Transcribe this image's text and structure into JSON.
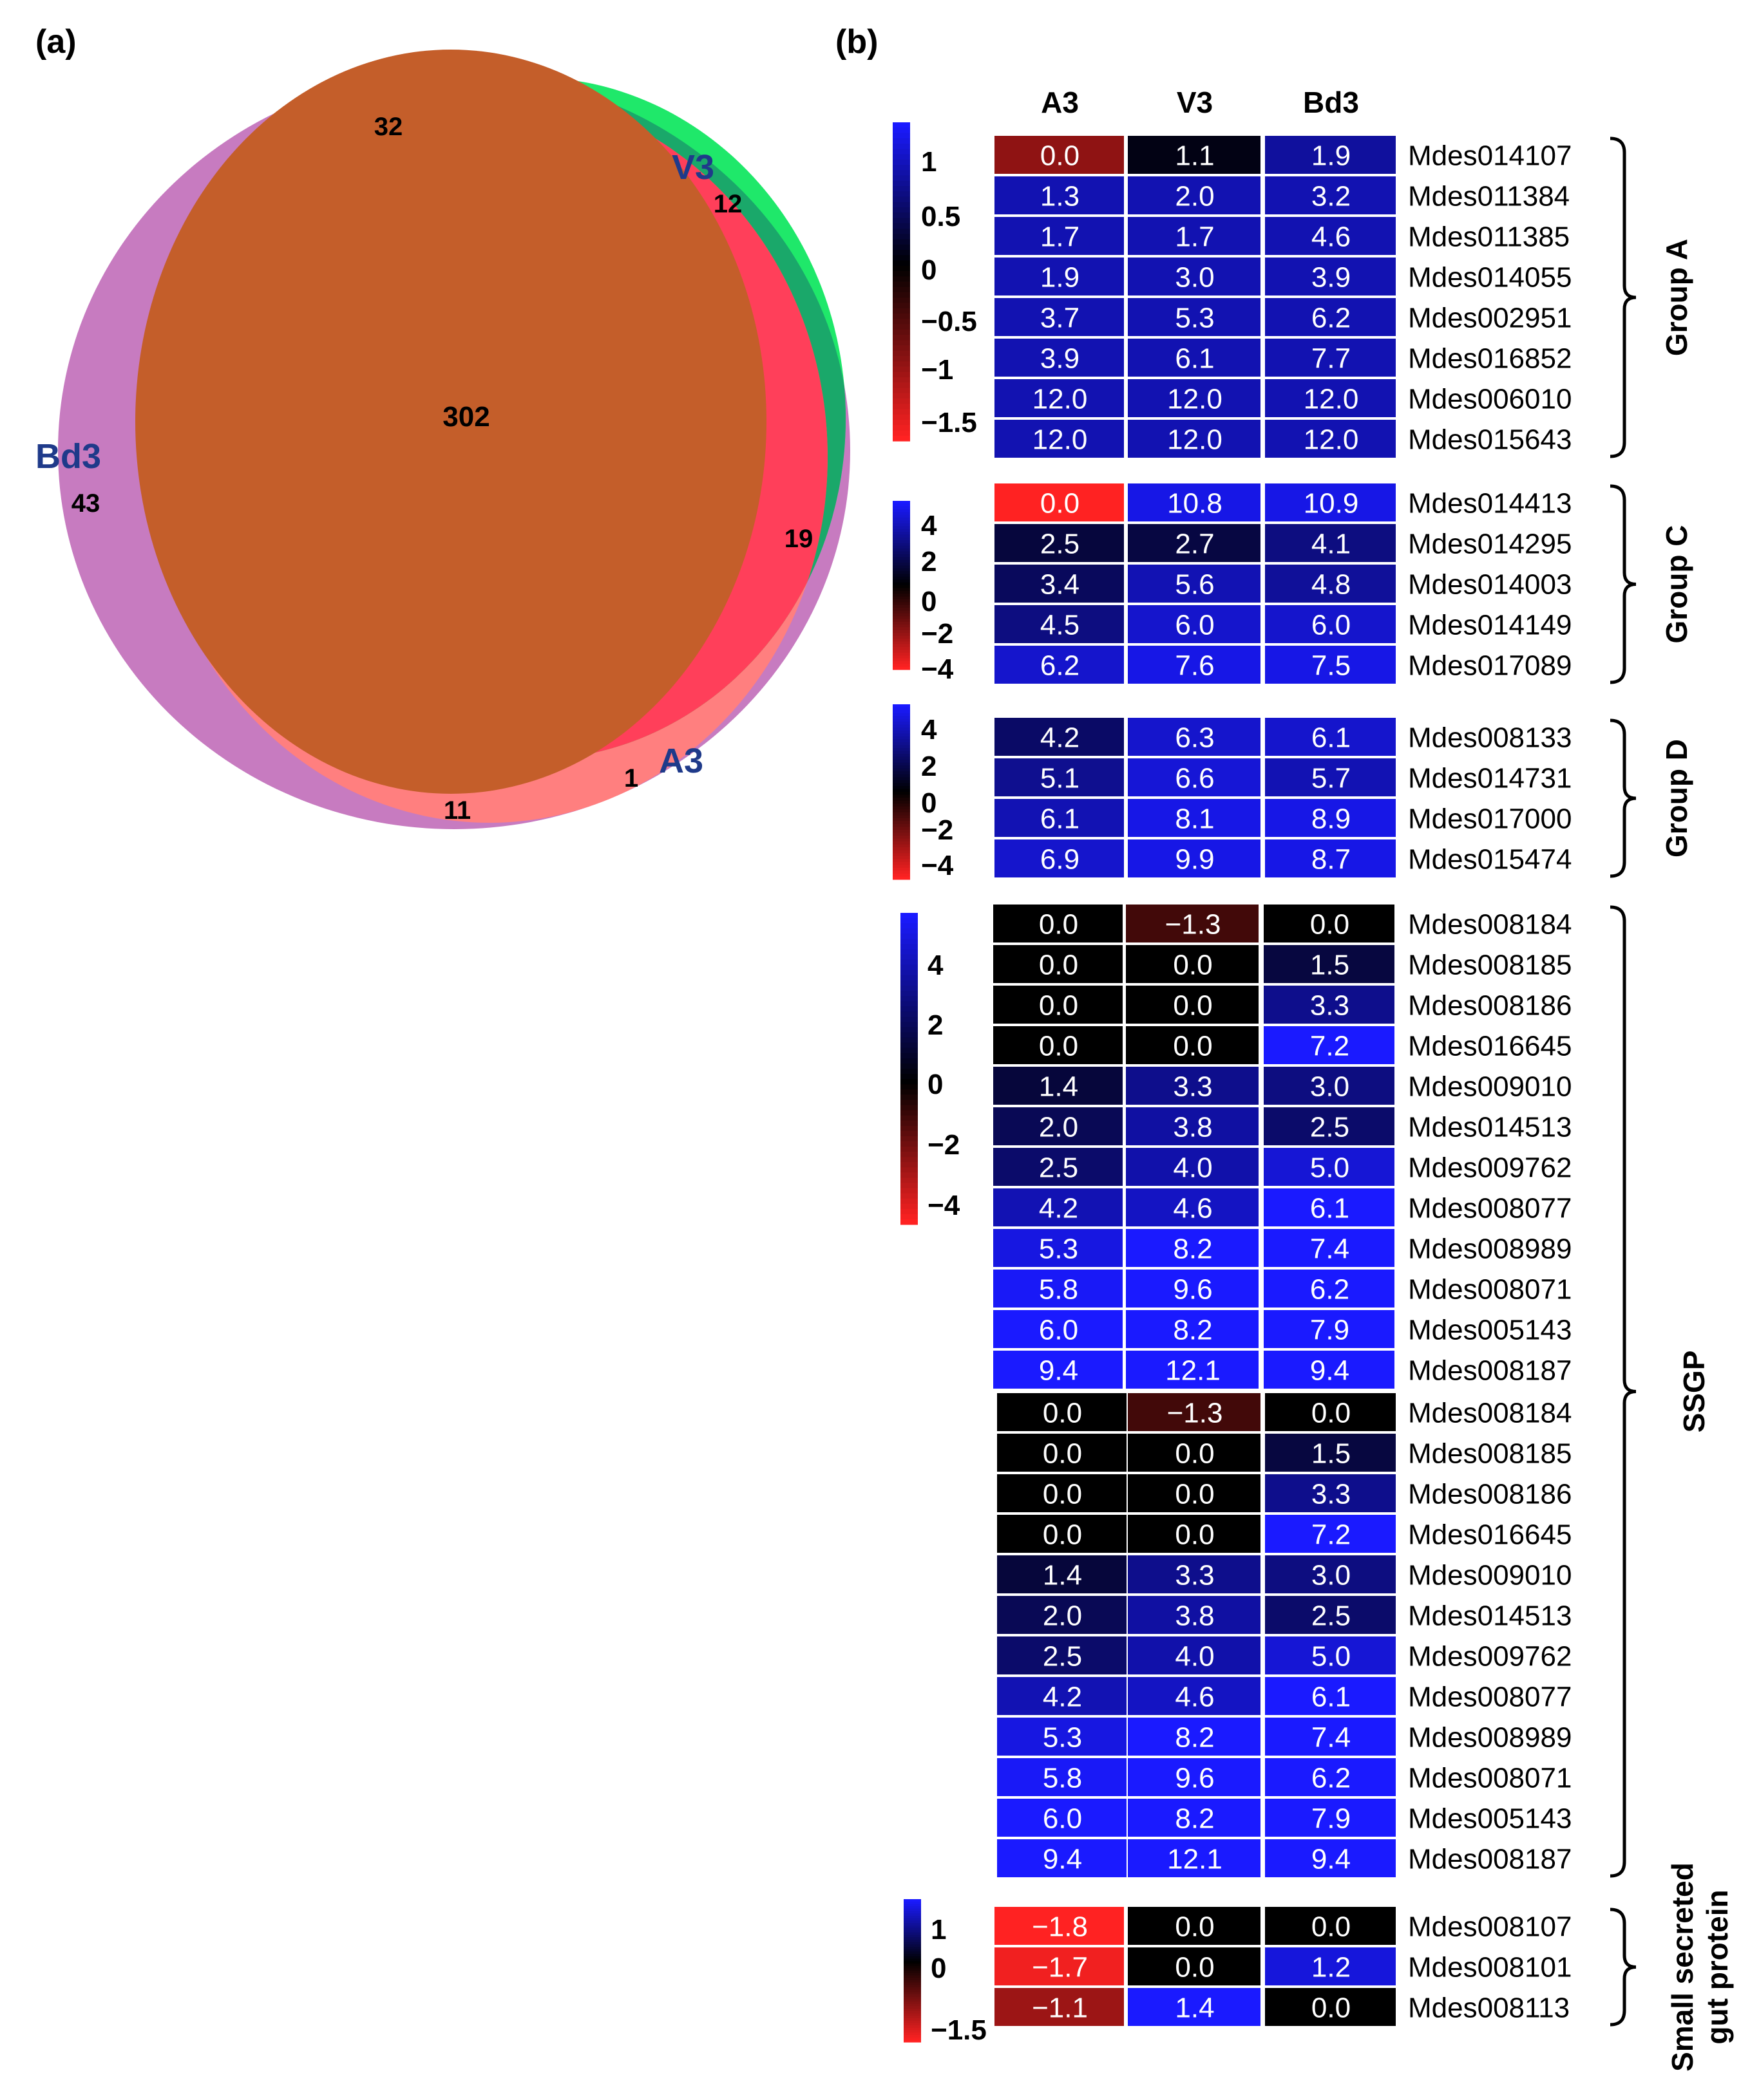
{
  "panels": {
    "a_label": "(a)",
    "b_label": "(b)"
  },
  "chart_data": [
    {
      "type": "venn",
      "panel": "(a)",
      "sets": [
        "Bd3",
        "V3",
        "A3"
      ],
      "regions": [
        {
          "sets": [
            "Bd3"
          ],
          "value": 43
        },
        {
          "sets": [
            "V3"
          ],
          "value": 12
        },
        {
          "sets": [
            "A3"
          ],
          "value": 1
        },
        {
          "sets": [
            "Bd3",
            "V3"
          ],
          "value": 32
        },
        {
          "sets": [
            "V3",
            "A3"
          ],
          "value": 19
        },
        {
          "sets": [
            "Bd3",
            "A3"
          ],
          "value": 11
        },
        {
          "sets": [
            "Bd3",
            "V3",
            "A3"
          ],
          "value": 302
        }
      ],
      "colors": {
        "Bd3": "#c77bc0",
        "V3": "#1fe86a",
        "A3": "#ff7f7f",
        "Bd3_V3": "#1aa86a",
        "center": "#c45e2a",
        "label_color": "#1f3a8a"
      }
    },
    {
      "type": "heatmap",
      "panel": "(b)",
      "columns": [
        "A3",
        "V3",
        "Bd3"
      ],
      "colors": {
        "high": "#1a1aff",
        "zero": "#000000",
        "low": "#ff2222",
        "cell_text": "#ffffff"
      },
      "groups": [
        {
          "name": "Group A",
          "scale_ticks": [
            "1",
            "0.5",
            "0",
            "−0.5",
            "−1",
            "−1.5"
          ],
          "scale_range": [
            -1.6,
            1.3
          ],
          "rows": [
            {
              "id": "Mdes014107",
              "values": [
                "0.0",
                "1.1",
                "1.9"
              ],
              "z": [
                -0.9,
                0.1,
                0.8
              ]
            },
            {
              "id": "Mdes011384",
              "values": [
                "1.3",
                "2.0",
                "3.2"
              ],
              "z": [
                0.9,
                0.9,
                0.9
              ]
            },
            {
              "id": "Mdes011385",
              "values": [
                "1.7",
                "1.7",
                "4.6"
              ],
              "z": [
                0.9,
                0.9,
                0.9
              ]
            },
            {
              "id": "Mdes014055",
              "values": [
                "1.9",
                "3.0",
                "3.9"
              ],
              "z": [
                0.9,
                0.9,
                0.9
              ]
            },
            {
              "id": "Mdes002951",
              "values": [
                "3.7",
                "5.3",
                "6.2"
              ],
              "z": [
                0.9,
                0.9,
                0.9
              ]
            },
            {
              "id": "Mdes016852",
              "values": [
                "3.9",
                "6.1",
                "7.7"
              ],
              "z": [
                0.9,
                0.9,
                0.9
              ]
            },
            {
              "id": "Mdes006010",
              "values": [
                "12.0",
                "12.0",
                "12.0"
              ],
              "z": [
                0.9,
                0.9,
                0.9
              ]
            },
            {
              "id": "Mdes015643",
              "values": [
                "12.0",
                "12.0",
                "12.0"
              ],
              "z": [
                0.9,
                0.9,
                0.9
              ]
            }
          ]
        },
        {
          "name": "Group C",
          "scale_ticks": [
            "4",
            "2",
            "0",
            "−2",
            "−4"
          ],
          "scale_range": [
            -5,
            5
          ],
          "rows": [
            {
              "id": "Mdes014413",
              "values": [
                "0.0",
                "10.8",
                "10.9"
              ],
              "z": [
                -5,
                4.5,
                4.5
              ]
            },
            {
              "id": "Mdes014295",
              "values": [
                "2.5",
                "2.7",
                "4.1"
              ],
              "z": [
                1.2,
                1.3,
                2.5
              ]
            },
            {
              "id": "Mdes014003",
              "values": [
                "3.4",
                "5.6",
                "4.8"
              ],
              "z": [
                1.8,
                3.5,
                3.0
              ]
            },
            {
              "id": "Mdes014149",
              "values": [
                "4.5",
                "6.0",
                "6.0"
              ],
              "z": [
                2.5,
                4.0,
                4.0
              ]
            },
            {
              "id": "Mdes017089",
              "values": [
                "6.2",
                "7.6",
                "7.5"
              ],
              "z": [
                4.0,
                4.5,
                4.5
              ]
            }
          ]
        },
        {
          "name": "Group D",
          "scale_ticks": [
            "4",
            "2",
            "0",
            "−2",
            "−4"
          ],
          "scale_range": [
            -5,
            5
          ],
          "rows": [
            {
              "id": "Mdes008133",
              "values": [
                "4.2",
                "6.3",
                "6.1"
              ],
              "z": [
                2.0,
                4.0,
                4.0
              ]
            },
            {
              "id": "Mdes014731",
              "values": [
                "5.1",
                "6.6",
                "5.7"
              ],
              "z": [
                2.8,
                4.2,
                3.5
              ]
            },
            {
              "id": "Mdes017000",
              "values": [
                "6.1",
                "8.1",
                "8.9"
              ],
              "z": [
                3.5,
                4.5,
                4.5
              ]
            },
            {
              "id": "Mdes015474",
              "values": [
                "6.9",
                "9.9",
                "8.7"
              ],
              "z": [
                4.0,
                4.5,
                4.5
              ]
            }
          ]
        },
        {
          "name": "SSGP",
          "scale_ticks": [
            "4",
            "2",
            "0",
            "−2",
            "−4"
          ],
          "scale_range": [
            -5,
            6
          ],
          "rows": [
            {
              "id": "Mdes008184",
              "values": [
                "0.0",
                "−1.3",
                "0.0"
              ],
              "z": [
                0,
                -1.3,
                0
              ]
            },
            {
              "id": "Mdes008185",
              "values": [
                "0.0",
                "0.0",
                "1.5"
              ],
              "z": [
                0,
                0,
                1.5
              ]
            },
            {
              "id": "Mdes008186",
              "values": [
                "0.0",
                "0.0",
                "3.3"
              ],
              "z": [
                0,
                0,
                3.3
              ]
            },
            {
              "id": "Mdes016645",
              "values": [
                "0.0",
                "0.0",
                "7.2"
              ],
              "z": [
                0,
                0,
                7.2
              ]
            },
            {
              "id": "Mdes009010",
              "values": [
                "1.4",
                "3.3",
                "3.0"
              ],
              "z": [
                1.4,
                3.3,
                3.0
              ]
            },
            {
              "id": "Mdes014513",
              "values": [
                "2.0",
                "3.8",
                "2.5"
              ],
              "z": [
                2.0,
                3.8,
                2.5
              ]
            },
            {
              "id": "Mdes009762",
              "values": [
                "2.5",
                "4.0",
                "5.0"
              ],
              "z": [
                2.5,
                4.0,
                5.0
              ]
            },
            {
              "id": "Mdes008077",
              "values": [
                "4.2",
                "4.6",
                "6.1"
              ],
              "z": [
                4.2,
                4.6,
                6.1
              ]
            },
            {
              "id": "Mdes008989",
              "values": [
                "5.3",
                "8.2",
                "7.4"
              ],
              "z": [
                5.3,
                8.2,
                7.4
              ]
            },
            {
              "id": "Mdes008071",
              "values": [
                "5.8",
                "9.6",
                "6.2"
              ],
              "z": [
                5.8,
                9.6,
                6.2
              ]
            },
            {
              "id": "Mdes005143",
              "values": [
                "6.0",
                "8.2",
                "7.9"
              ],
              "z": [
                6.0,
                8.2,
                7.9
              ]
            },
            {
              "id": "Mdes008187",
              "values": [
                "9.4",
                "12.1",
                "9.4"
              ],
              "z": [
                9.4,
                12.1,
                9.4
              ]
            },
            {
              "id": "Mdes008184",
              "values": [
                "0.0",
                "−1.3",
                "0.0"
              ],
              "z": [
                0,
                -1.3,
                0
              ]
            },
            {
              "id": "Mdes008185",
              "values": [
                "0.0",
                "0.0",
                "1.5"
              ],
              "z": [
                0,
                0,
                1.5
              ]
            },
            {
              "id": "Mdes008186",
              "values": [
                "0.0",
                "0.0",
                "3.3"
              ],
              "z": [
                0,
                0,
                3.3
              ]
            },
            {
              "id": "Mdes016645",
              "values": [
                "0.0",
                "0.0",
                "7.2"
              ],
              "z": [
                0,
                0,
                7.2
              ]
            },
            {
              "id": "Mdes009010",
              "values": [
                "1.4",
                "3.3",
                "3.0"
              ],
              "z": [
                1.4,
                3.3,
                3.0
              ]
            },
            {
              "id": "Mdes014513",
              "values": [
                "2.0",
                "3.8",
                "2.5"
              ],
              "z": [
                2.0,
                3.8,
                2.5
              ]
            },
            {
              "id": "Mdes009762",
              "values": [
                "2.5",
                "4.0",
                "5.0"
              ],
              "z": [
                2.5,
                4.0,
                5.0
              ]
            },
            {
              "id": "Mdes008077",
              "values": [
                "4.2",
                "4.6",
                "6.1"
              ],
              "z": [
                4.2,
                4.6,
                6.1
              ]
            },
            {
              "id": "Mdes008989",
              "values": [
                "5.3",
                "8.2",
                "7.4"
              ],
              "z": [
                5.3,
                8.2,
                7.4
              ]
            },
            {
              "id": "Mdes008071",
              "values": [
                "5.8",
                "9.6",
                "6.2"
              ],
              "z": [
                5.8,
                9.6,
                6.2
              ]
            },
            {
              "id": "Mdes005143",
              "values": [
                "6.0",
                "8.2",
                "7.9"
              ],
              "z": [
                6.0,
                8.2,
                7.9
              ]
            },
            {
              "id": "Mdes008187",
              "values": [
                "9.4",
                "12.1",
                "9.4"
              ],
              "z": [
                9.4,
                12.1,
                9.4
              ]
            }
          ]
        },
        {
          "name": "Small secreted gut protein",
          "name_lines": [
            "Small secreted",
            "gut protein"
          ],
          "scale_ticks": [
            "1",
            "0",
            "−1.5"
          ],
          "scale_range": [
            -1.8,
            1.4
          ],
          "rows": [
            {
              "id": "Mdes008107",
              "values": [
                "−1.8",
                "0.0",
                "0.0"
              ],
              "z": [
                -1.8,
                0,
                0
              ]
            },
            {
              "id": "Mdes008101",
              "values": [
                "−1.7",
                "0.0",
                "1.2"
              ],
              "z": [
                -1.7,
                0,
                1.2
              ]
            },
            {
              "id": "Mdes008113",
              "values": [
                "−1.1",
                "1.4",
                "0.0"
              ],
              "z": [
                -1.1,
                1.4,
                0
              ]
            }
          ]
        }
      ]
    }
  ]
}
